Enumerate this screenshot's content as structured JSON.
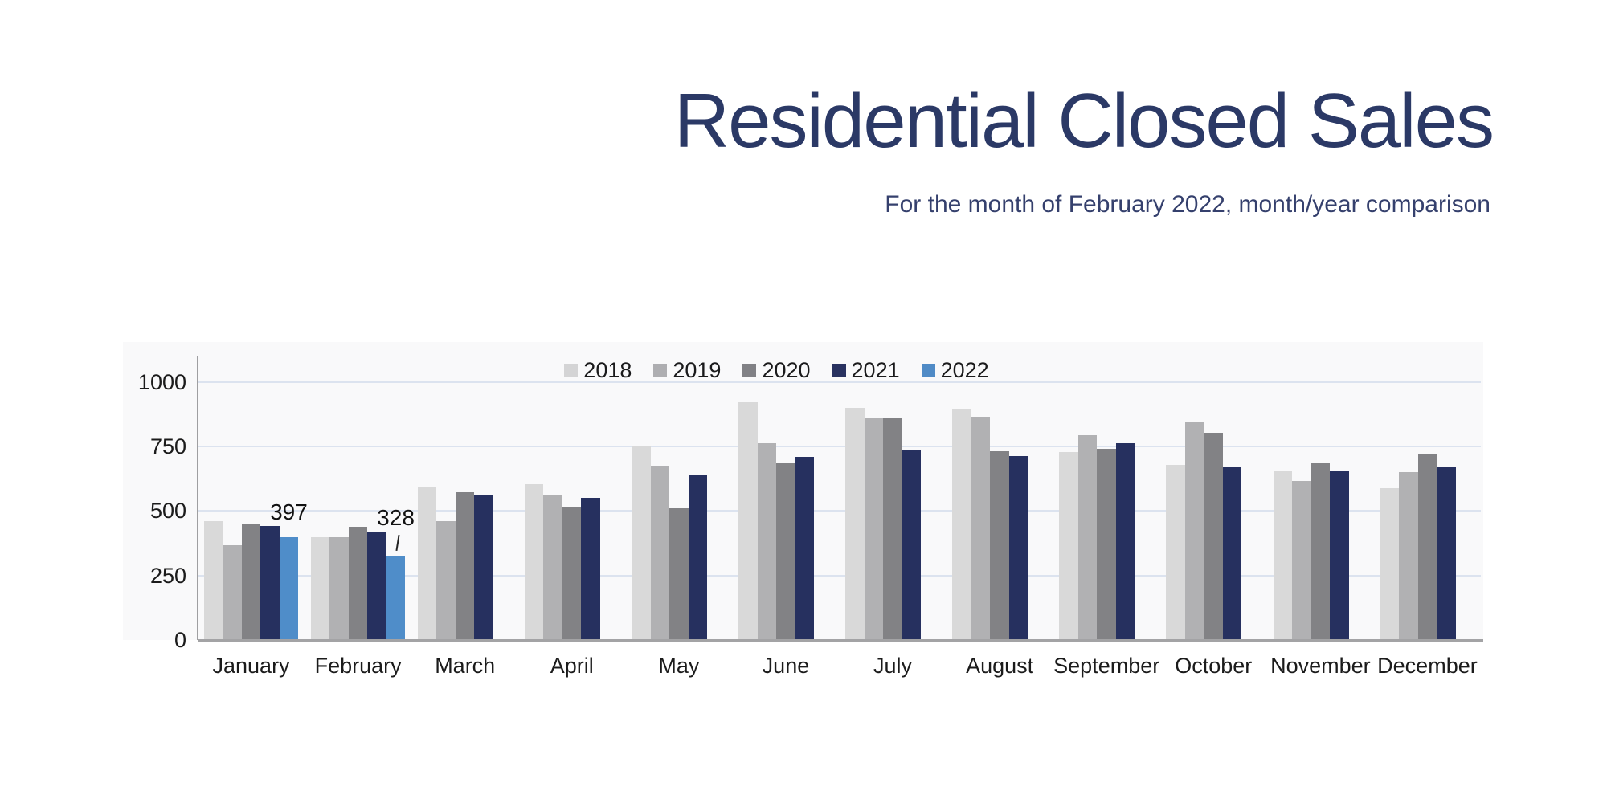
{
  "header": {
    "title": "Residential Closed Sales",
    "subtitle": "For the month of February 2022, month/year comparison"
  },
  "chart_data": {
    "type": "bar",
    "title": "Residential Closed Sales",
    "subtitle": "For the month of February 2022, month/year comparison",
    "categories": [
      "January",
      "February",
      "March",
      "April",
      "May",
      "June",
      "July",
      "August",
      "September",
      "October",
      "November",
      "December"
    ],
    "series": [
      {
        "name": "2018",
        "color": "#d9d9d9",
        "values": [
          460,
          398,
          595,
          605,
          750,
          920,
          900,
          896,
          730,
          678,
          653,
          588
        ]
      },
      {
        "name": "2019",
        "color": "#b1b1b3",
        "values": [
          368,
          400,
          460,
          565,
          676,
          762,
          858,
          866,
          795,
          843,
          615,
          652
        ]
      },
      {
        "name": "2020",
        "color": "#828285",
        "values": [
          450,
          438,
          572,
          513,
          512,
          688,
          858,
          733,
          740,
          803,
          686,
          723
        ]
      },
      {
        "name": "2021",
        "color": "#26305f",
        "values": [
          442,
          418,
          563,
          552,
          637,
          710,
          735,
          712,
          763,
          668,
          658,
          671
        ]
      },
      {
        "name": "2022",
        "color": "#4f8dc9",
        "values": [
          397,
          328,
          null,
          null,
          null,
          null,
          null,
          null,
          null,
          null,
          null,
          null
        ]
      }
    ],
    "annotations": [
      {
        "category": "January",
        "series": "2022",
        "label": "397",
        "leader": false
      },
      {
        "category": "February",
        "series": "2022",
        "label": "328",
        "leader": true
      }
    ],
    "y_axis": {
      "ticks": [
        0,
        250,
        500,
        750,
        1000
      ],
      "max": 1100
    },
    "xlabel": "",
    "ylabel": "",
    "grid": true,
    "legend_position": "top-center"
  },
  "colors": {
    "title": "#2b3966",
    "subtitle": "#35406d",
    "gridline": "#dce3ef",
    "axis": "#a3a3a5",
    "text": "#1b1b1b"
  }
}
